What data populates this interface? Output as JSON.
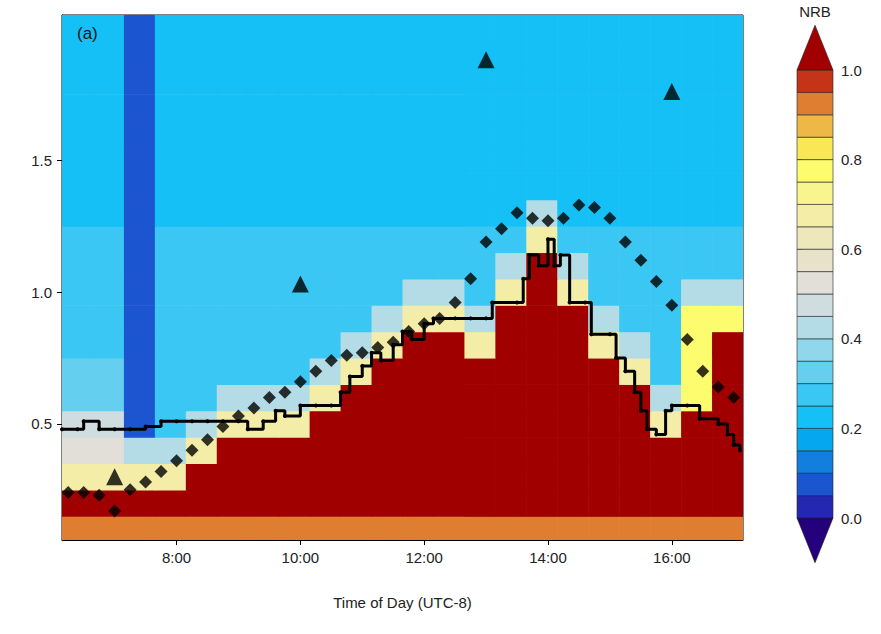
{
  "chart_data": {
    "type": "heatmap",
    "title": "(a)",
    "x_label": "Time of Day (UTC-8)",
    "xlim": [
      6.15,
      17.15
    ],
    "xticks": [
      {
        "value": 8,
        "label": "8:00"
      },
      {
        "value": 10,
        "label": "10:00"
      },
      {
        "value": 12,
        "label": "12:00"
      },
      {
        "value": 14,
        "label": "14:00"
      },
      {
        "value": 16,
        "label": "16:00"
      }
    ],
    "ylim": [
      0.06,
      2.05
    ],
    "yticks": [
      0.5,
      {
        "value": 1,
        "label": "1.0"
      },
      1.5
    ],
    "grid": false,
    "heatmap": {
      "x": [
        6.4,
        6.9,
        7.4,
        7.9,
        8.4,
        8.9,
        9.4,
        9.9,
        10.4,
        10.9,
        11.4,
        11.9,
        12.4,
        12.9,
        13.4,
        13.9,
        14.4,
        14.9,
        15.4,
        15.9,
        16.4,
        16.9
      ],
      "y": [
        0.1,
        0.2,
        0.3,
        0.4,
        0.5,
        0.6,
        0.7,
        0.8,
        0.9,
        1.0,
        1.1,
        1.2,
        1.3,
        1.4,
        1.5,
        1.6,
        1.7,
        1.8,
        1.9,
        2.0
      ],
      "z": [
        [
          0.9,
          0.9,
          0.9,
          0.9,
          0.9,
          0.9,
          0.9,
          0.9,
          0.9,
          0.9,
          0.9,
          0.9,
          0.9,
          0.9,
          0.9,
          0.9,
          0.9,
          0.9,
          0.9,
          0.9,
          0.9,
          0.9
        ],
        [
          1.0,
          1.0,
          1.0,
          1.0,
          1.0,
          1.0,
          1.0,
          1.0,
          1.0,
          1.0,
          1.0,
          1.0,
          1.0,
          1.0,
          1.0,
          1.0,
          1.0,
          1.0,
          1.0,
          1.0,
          1.0,
          1.0
        ],
        [
          0.65,
          0.65,
          0.65,
          0.65,
          1.0,
          1.0,
          1.0,
          1.0,
          1.0,
          1.0,
          1.0,
          1.0,
          1.0,
          1.0,
          1.0,
          1.0,
          1.0,
          1.0,
          1.0,
          1.0,
          1.0,
          1.0
        ],
        [
          0.5,
          0.5,
          0.4,
          0.4,
          0.65,
          1.0,
          1.0,
          1.0,
          1.0,
          1.0,
          1.0,
          1.0,
          1.0,
          1.0,
          1.0,
          1.0,
          1.0,
          1.0,
          1.0,
          1.0,
          1.0,
          1.0
        ],
        [
          0.45,
          0.45,
          0.08,
          0.25,
          0.4,
          0.65,
          0.65,
          0.65,
          1.0,
          1.0,
          1.0,
          1.0,
          1.0,
          1.0,
          1.0,
          1.0,
          1.0,
          1.0,
          1.0,
          0.65,
          1.0,
          1.0
        ],
        [
          0.3,
          0.3,
          0.08,
          0.25,
          0.25,
          0.4,
          0.4,
          0.4,
          0.65,
          1.0,
          1.0,
          1.0,
          1.0,
          1.0,
          1.0,
          1.0,
          1.0,
          1.0,
          1.0,
          0.4,
          0.75,
          1.0
        ],
        [
          0.3,
          0.3,
          0.08,
          0.25,
          0.25,
          0.25,
          0.25,
          0.25,
          0.4,
          0.65,
          1.0,
          1.0,
          1.0,
          1.0,
          1.0,
          1.0,
          1.0,
          1.0,
          0.65,
          0.25,
          0.75,
          1.0
        ],
        [
          0.25,
          0.25,
          0.08,
          0.25,
          0.25,
          0.25,
          0.25,
          0.25,
          0.25,
          0.4,
          0.65,
          1.0,
          1.0,
          0.65,
          1.0,
          1.0,
          1.0,
          0.65,
          0.4,
          0.25,
          0.75,
          1.0
        ],
        [
          0.25,
          0.25,
          0.08,
          0.25,
          0.25,
          0.25,
          0.25,
          0.25,
          0.25,
          0.25,
          0.4,
          0.65,
          0.65,
          0.4,
          1.0,
          1.0,
          1.0,
          0.4,
          0.25,
          0.25,
          0.75,
          0.75
        ],
        [
          0.25,
          0.25,
          0.08,
          0.25,
          0.25,
          0.25,
          0.25,
          0.25,
          0.25,
          0.25,
          0.25,
          0.4,
          0.4,
          0.25,
          0.65,
          1.0,
          0.65,
          0.25,
          0.25,
          0.25,
          0.4,
          0.4
        ],
        [
          0.25,
          0.25,
          0.08,
          0.25,
          0.25,
          0.25,
          0.25,
          0.25,
          0.25,
          0.25,
          0.25,
          0.25,
          0.25,
          0.25,
          0.4,
          1.0,
          0.4,
          0.25,
          0.25,
          0.25,
          0.25,
          0.25
        ],
        [
          0.25,
          0.25,
          0.08,
          0.25,
          0.25,
          0.25,
          0.25,
          0.25,
          0.25,
          0.25,
          0.25,
          0.25,
          0.25,
          0.25,
          0.25,
          0.65,
          0.25,
          0.25,
          0.25,
          0.25,
          0.25,
          0.25
        ],
        [
          0.2,
          0.2,
          0.08,
          0.2,
          0.2,
          0.2,
          0.2,
          0.2,
          0.2,
          0.2,
          0.2,
          0.2,
          0.2,
          0.2,
          0.2,
          0.4,
          0.2,
          0.2,
          0.2,
          0.2,
          0.2,
          0.2
        ],
        [
          0.2,
          0.2,
          0.08,
          0.2,
          0.2,
          0.2,
          0.2,
          0.2,
          0.2,
          0.2,
          0.2,
          0.2,
          0.2,
          0.2,
          0.2,
          0.2,
          0.2,
          0.2,
          0.2,
          0.2,
          0.2,
          0.2
        ],
        [
          0.2,
          0.2,
          0.08,
          0.2,
          0.2,
          0.2,
          0.2,
          0.2,
          0.2,
          0.2,
          0.2,
          0.2,
          0.2,
          0.2,
          0.2,
          0.2,
          0.2,
          0.2,
          0.2,
          0.2,
          0.2,
          0.2
        ],
        [
          0.2,
          0.2,
          0.08,
          0.2,
          0.2,
          0.2,
          0.2,
          0.2,
          0.2,
          0.2,
          0.2,
          0.2,
          0.2,
          0.2,
          0.2,
          0.2,
          0.2,
          0.2,
          0.2,
          0.2,
          0.2,
          0.2
        ],
        [
          0.2,
          0.2,
          0.08,
          0.2,
          0.2,
          0.2,
          0.2,
          0.2,
          0.2,
          0.2,
          0.2,
          0.2,
          0.2,
          0.2,
          0.2,
          0.2,
          0.2,
          0.2,
          0.2,
          0.2,
          0.2,
          0.2
        ],
        [
          0.2,
          0.2,
          0.08,
          0.2,
          0.2,
          0.2,
          0.2,
          0.2,
          0.2,
          0.2,
          0.2,
          0.2,
          0.2,
          0.2,
          0.2,
          0.2,
          0.2,
          0.2,
          0.2,
          0.2,
          0.2,
          0.2
        ],
        [
          0.2,
          0.2,
          0.08,
          0.2,
          0.2,
          0.2,
          0.2,
          0.2,
          0.2,
          0.2,
          0.2,
          0.2,
          0.2,
          0.2,
          0.2,
          0.2,
          0.2,
          0.2,
          0.2,
          0.2,
          0.2,
          0.2
        ],
        [
          0.2,
          0.2,
          0.08,
          0.2,
          0.2,
          0.2,
          0.2,
          0.2,
          0.2,
          0.2,
          0.2,
          0.2,
          0.2,
          0.2,
          0.2,
          0.2,
          0.2,
          0.2,
          0.2,
          0.2,
          0.2,
          0.2
        ]
      ]
    },
    "colorbar": {
      "title": "NRB",
      "range": [
        0,
        1
      ],
      "ticks": [
        {
          "value": 0,
          "label": "0.0"
        },
        0.2,
        0.4,
        0.6,
        0.8,
        {
          "value": 1,
          "label": "1.0"
        }
      ]
    },
    "series": [
      {
        "type": "scatter",
        "marker": "diamond",
        "color": "#000000",
        "x": [
          6.25,
          6.5,
          6.75,
          7.0,
          7.25,
          7.5,
          7.75,
          8.0,
          8.25,
          8.5,
          8.75,
          9.0,
          9.25,
          9.5,
          9.75,
          10.0,
          10.25,
          10.5,
          10.75,
          11.0,
          11.25,
          11.5,
          11.75,
          12.0,
          12.25,
          12.5,
          12.75,
          13.0,
          13.25,
          13.5,
          13.75,
          14.0,
          14.25,
          14.5,
          14.75,
          15.0,
          15.25,
          15.5,
          15.75,
          16.0,
          16.25,
          16.5,
          16.75,
          17.0
        ],
        "values": [
          0.24,
          0.24,
          0.23,
          0.17,
          0.25,
          0.28,
          0.32,
          0.36,
          0.4,
          0.44,
          0.49,
          0.53,
          0.56,
          0.6,
          0.62,
          0.66,
          0.7,
          0.74,
          0.76,
          0.77,
          0.79,
          0.81,
          0.85,
          0.88,
          0.9,
          0.96,
          1.05,
          1.19,
          1.24,
          1.3,
          1.28,
          1.27,
          1.28,
          1.33,
          1.32,
          1.28,
          1.19,
          1.12,
          1.04,
          0.95,
          0.82,
          0.7,
          0.64,
          0.6
        ]
      },
      {
        "type": "scatter",
        "marker": "triangle",
        "color": "#000000",
        "x": [
          7.0,
          10.0,
          13.0,
          16.0
        ],
        "values": [
          0.3,
          1.03,
          1.88,
          1.76
        ]
      },
      {
        "type": "step",
        "marker": "circle",
        "line_style": "solid",
        "color": "#000000",
        "x": [
          6.15,
          6.4,
          6.5,
          6.75,
          7.0,
          7.25,
          7.5,
          7.75,
          8.0,
          8.25,
          8.5,
          8.75,
          9.0,
          9.15,
          9.4,
          9.6,
          9.75,
          10.0,
          10.25,
          10.5,
          10.65,
          10.8,
          11.0,
          11.15,
          11.3,
          11.5,
          11.65,
          11.8,
          12.0,
          12.15,
          12.5,
          12.75,
          13.0,
          13.1,
          13.5,
          13.6,
          13.7,
          13.85,
          14.0,
          14.1,
          14.2,
          14.35,
          14.6,
          14.7,
          15.0,
          15.1,
          15.25,
          15.4,
          15.5,
          15.6,
          15.75,
          15.9,
          16.0,
          16.25,
          16.45,
          16.75,
          16.9,
          17.0,
          17.1
        ],
        "values": [
          0.48,
          0.48,
          0.51,
          0.48,
          0.48,
          0.48,
          0.49,
          0.51,
          0.51,
          0.51,
          0.51,
          0.51,
          0.51,
          0.48,
          0.51,
          0.55,
          0.53,
          0.57,
          0.57,
          0.57,
          0.62,
          0.68,
          0.72,
          0.77,
          0.74,
          0.8,
          0.85,
          0.82,
          0.88,
          0.9,
          0.9,
          0.9,
          0.9,
          0.96,
          0.96,
          1.05,
          1.14,
          1.1,
          1.2,
          1.1,
          1.14,
          0.96,
          0.96,
          0.84,
          0.84,
          0.75,
          0.7,
          0.62,
          0.55,
          0.48,
          0.46,
          0.55,
          0.57,
          0.57,
          0.52,
          0.5,
          0.46,
          0.42,
          0.4
        ]
      }
    ]
  }
}
